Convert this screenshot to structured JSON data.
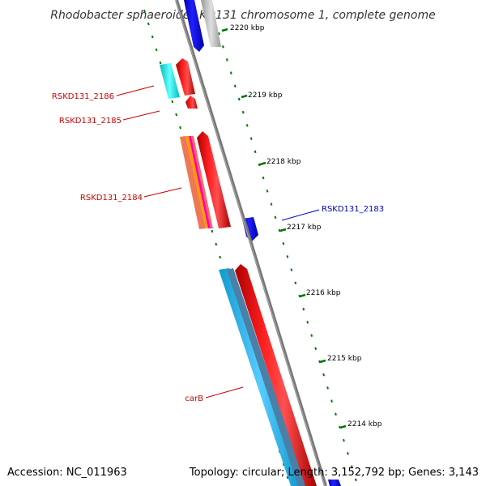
{
  "title": "Rhodobacter sphaeroides KD131 chromosome 1, complete genome",
  "footer": {
    "accession": "Accession: NC_011963",
    "summary": "Topology: circular; Length: 3,152,792 bp; Genes: 3,143"
  },
  "ticks": [
    "2220 kbp",
    "2219 kbp",
    "2218 kbp",
    "2217 kbp",
    "2216 kbp",
    "2215 kbp",
    "2214 kbp"
  ],
  "gene_labels": [
    {
      "text": "RSKD131_2186",
      "color": "#cc0000"
    },
    {
      "text": "RSKD131_2185",
      "color": "#cc0000"
    },
    {
      "text": "RSKD131_2184",
      "color": "#cc0000"
    },
    {
      "text": "RSKD131_2183",
      "color": "#0000cc"
    },
    {
      "text": "carB",
      "color": "#cc0000"
    }
  ],
  "colors": {
    "forward_gene": "#ff0000",
    "reverse_gene": "#0000ff",
    "backbone": "#888888",
    "tick": "#007700",
    "cyan_feature": "#00e5e5",
    "sky_feature": "#33bbee"
  }
}
